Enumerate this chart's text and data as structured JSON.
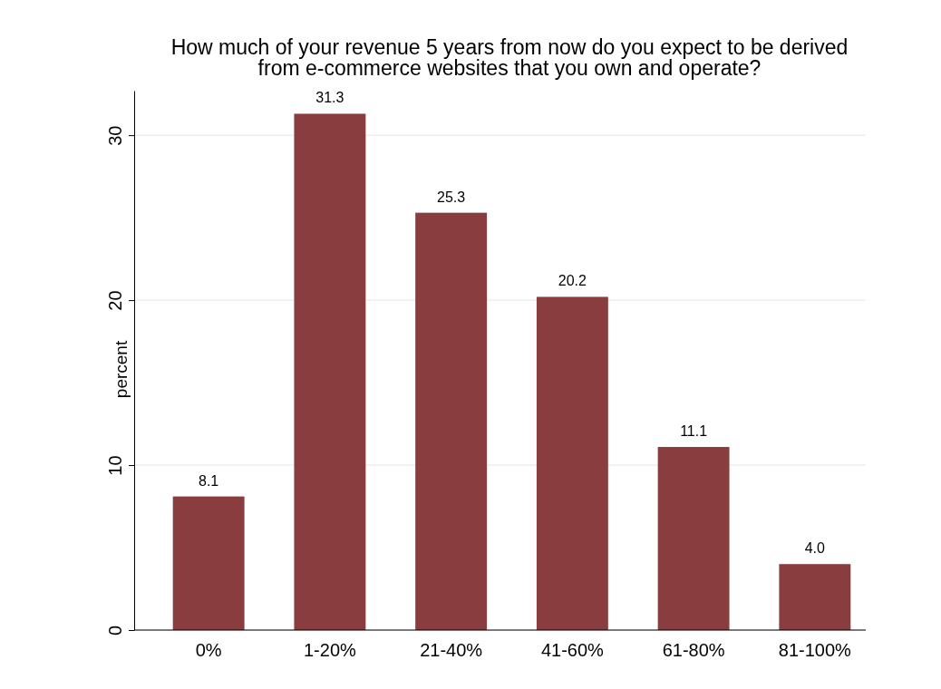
{
  "chart_data": {
    "type": "bar",
    "title": "How much of your revenue 5 years from now do you expect to be derived\nfrom e-commerce websites that you own and operate?",
    "ylabel": "percent",
    "categories": [
      "0%",
      "1-20%",
      "21-40%",
      "41-60%",
      "61-80%",
      "81-100%"
    ],
    "values": [
      8.1,
      31.3,
      25.3,
      20.2,
      11.1,
      4.0
    ],
    "value_labels": [
      "8.1",
      "31.3",
      "25.3",
      "20.2",
      "11.1",
      "4.0"
    ],
    "color": "#893d3f",
    "ylim": [
      0,
      32.7
    ],
    "yticks": [
      0,
      10,
      20,
      30
    ],
    "grid": "y"
  }
}
